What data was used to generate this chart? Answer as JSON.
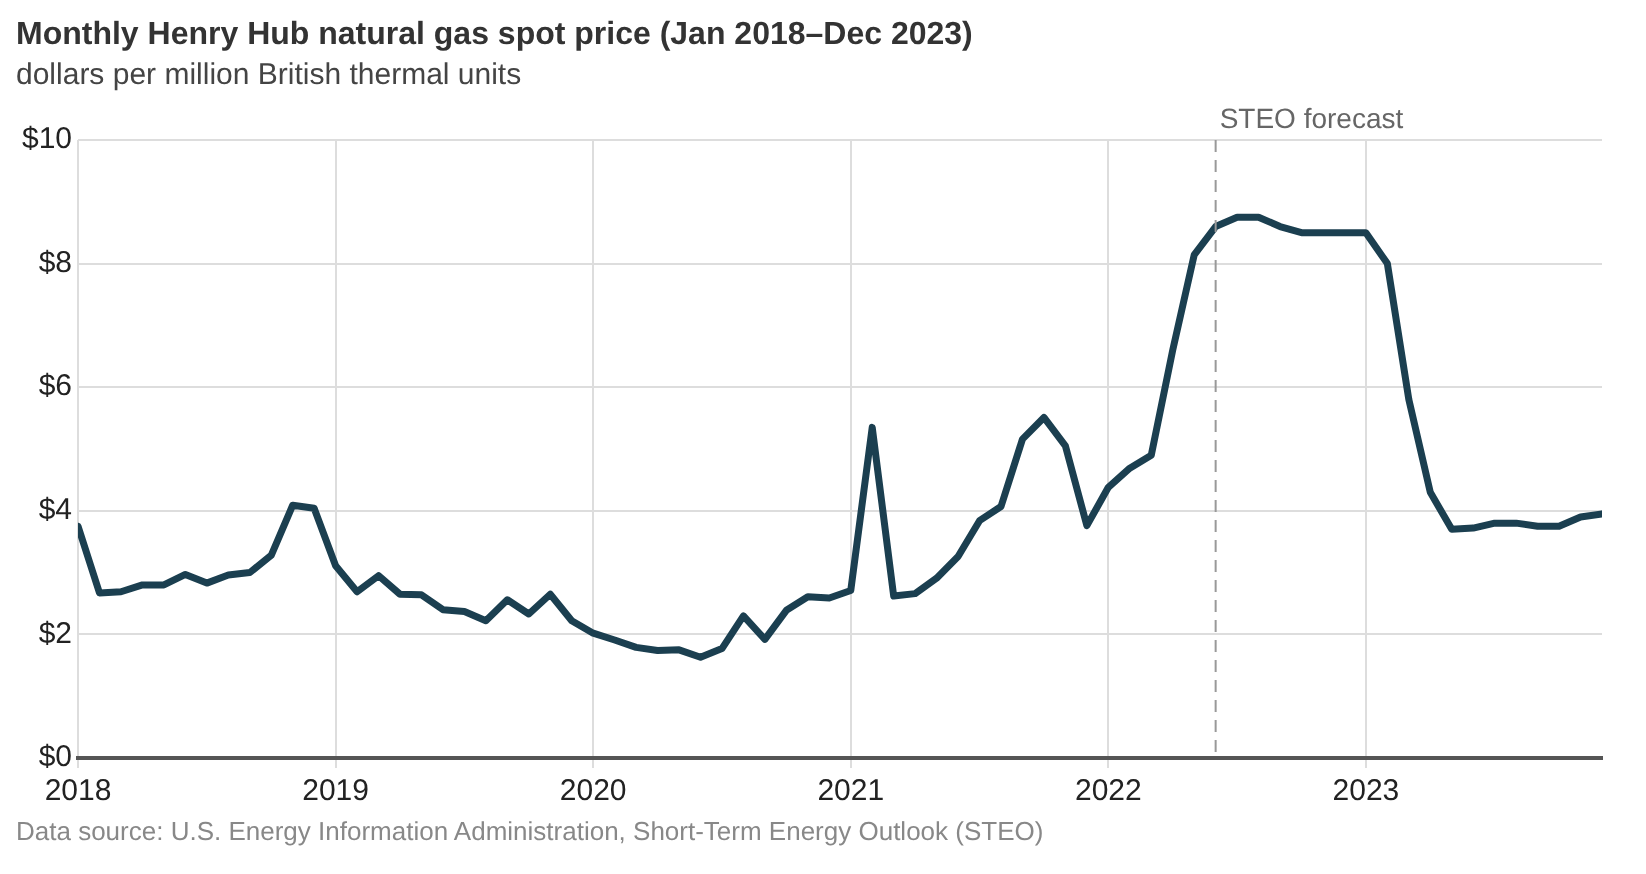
{
  "chart_data": {
    "type": "line",
    "title": "Monthly Henry Hub natural gas spot price (Jan 2018–Dec 2023)",
    "subtitle": "dollars per million British thermal units",
    "x": [
      "2018-01",
      "2018-02",
      "2018-03",
      "2018-04",
      "2018-05",
      "2018-06",
      "2018-07",
      "2018-08",
      "2018-09",
      "2018-10",
      "2018-11",
      "2018-12",
      "2019-01",
      "2019-02",
      "2019-03",
      "2019-04",
      "2019-05",
      "2019-06",
      "2019-07",
      "2019-08",
      "2019-09",
      "2019-10",
      "2019-11",
      "2019-12",
      "2020-01",
      "2020-02",
      "2020-03",
      "2020-04",
      "2020-05",
      "2020-06",
      "2020-07",
      "2020-08",
      "2020-09",
      "2020-10",
      "2020-11",
      "2020-12",
      "2021-01",
      "2021-02",
      "2021-03",
      "2021-04",
      "2021-05",
      "2021-06",
      "2021-07",
      "2021-08",
      "2021-09",
      "2021-10",
      "2021-11",
      "2021-12",
      "2022-01",
      "2022-02",
      "2022-03",
      "2022-04",
      "2022-05",
      "2022-06",
      "2022-07",
      "2022-08",
      "2022-09",
      "2022-10",
      "2022-11",
      "2022-12",
      "2023-01",
      "2023-02",
      "2023-03",
      "2023-04",
      "2023-05",
      "2023-06",
      "2023-07",
      "2023-08",
      "2023-09",
      "2023-10",
      "2023-11",
      "2023-12"
    ],
    "series": [
      {
        "color": "#1b3f50",
        "values": [
          3.75,
          2.67,
          2.69,
          2.8,
          2.8,
          2.97,
          2.83,
          2.96,
          3.0,
          3.28,
          4.09,
          4.04,
          3.11,
          2.69,
          2.95,
          2.65,
          2.64,
          2.4,
          2.37,
          2.22,
          2.56,
          2.33,
          2.65,
          2.22,
          2.02,
          1.91,
          1.79,
          1.74,
          1.75,
          1.63,
          1.77,
          2.3,
          1.92,
          2.39,
          2.61,
          2.59,
          2.71,
          5.35,
          2.62,
          2.66,
          2.91,
          3.26,
          3.84,
          4.07,
          5.16,
          5.51,
          5.05,
          3.76,
          4.38,
          4.69,
          4.9,
          6.6,
          8.14,
          8.6,
          8.75,
          8.75,
          8.6,
          8.5,
          8.5,
          8.5,
          8.5,
          8.0,
          5.8,
          4.3,
          3.7,
          3.72,
          3.8,
          3.8,
          3.75,
          3.75,
          3.9,
          3.95
        ]
      }
    ],
    "xlim": [
      "2018-01",
      "2023-12"
    ],
    "xticks": [
      "2018",
      "2019",
      "2020",
      "2021",
      "2022",
      "2023"
    ],
    "ylim": [
      0,
      10
    ],
    "yticks": [
      {
        "value": 0,
        "label": "$0"
      },
      {
        "value": 2,
        "label": "$2"
      },
      {
        "value": 4,
        "label": "$4"
      },
      {
        "value": 6,
        "label": "$6"
      },
      {
        "value": 8,
        "label": "$8"
      },
      {
        "value": 10,
        "label": "$10"
      }
    ],
    "grid": true,
    "legend": false,
    "marker": "none",
    "line_style": "solid",
    "ref_lines": [
      {
        "axis": "x",
        "value": "2022-06",
        "label": "STEO forecast",
        "color": "#999999",
        "line_style": "dashed"
      }
    ],
    "annotations": [
      "Data source: U.S. Energy Information Administration, Short-Term Energy Outlook (STEO)"
    ]
  }
}
